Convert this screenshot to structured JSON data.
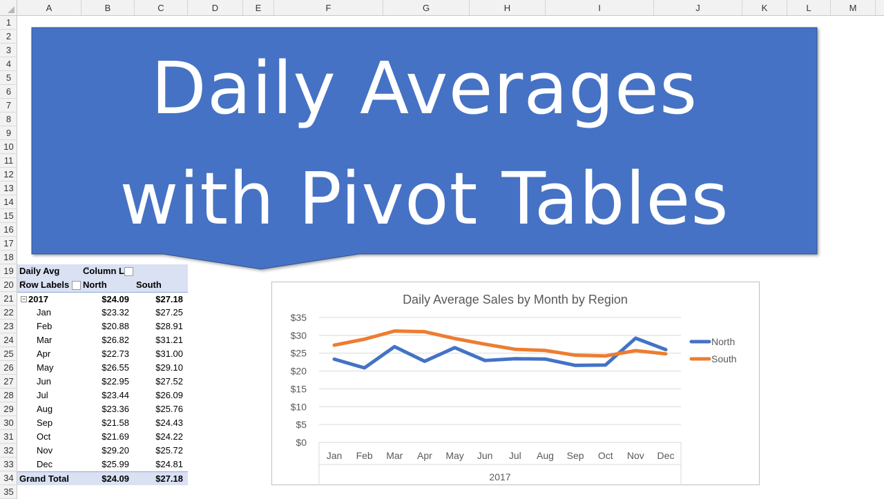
{
  "sheet": {
    "columns": [
      "A",
      "B",
      "C",
      "D",
      "E",
      "F",
      "G",
      "H",
      "I",
      "J",
      "K",
      "L",
      "M"
    ],
    "rows": [
      "1",
      "2",
      "3",
      "4",
      "5",
      "6",
      "7",
      "8",
      "9",
      "10",
      "11",
      "12",
      "13",
      "14",
      "15",
      "16",
      "17",
      "18",
      "19",
      "20",
      "21",
      "22",
      "23",
      "24",
      "25",
      "26",
      "27",
      "28",
      "29",
      "30",
      "31",
      "32",
      "33",
      "34",
      "35"
    ]
  },
  "banner": {
    "line1": "Daily Averages",
    "line2": "with Pivot Tables",
    "color": "#4472c4"
  },
  "pivot": {
    "value_label": "Daily Avg",
    "column_labels": "Column L",
    "row_labels": "Row Labels",
    "col_north": "North",
    "col_south": "South",
    "year": {
      "label": "2017",
      "north": "$24.09",
      "south": "$27.18"
    },
    "months": [
      {
        "label": "Jan",
        "north": "$23.32",
        "south": "$27.25"
      },
      {
        "label": "Feb",
        "north": "$20.88",
        "south": "$28.91"
      },
      {
        "label": "Mar",
        "north": "$26.82",
        "south": "$31.21"
      },
      {
        "label": "Apr",
        "north": "$22.73",
        "south": "$31.00"
      },
      {
        "label": "May",
        "north": "$26.55",
        "south": "$29.10"
      },
      {
        "label": "Jun",
        "north": "$22.95",
        "south": "$27.52"
      },
      {
        "label": "Jul",
        "north": "$23.44",
        "south": "$26.09"
      },
      {
        "label": "Aug",
        "north": "$23.36",
        "south": "$25.76"
      },
      {
        "label": "Sep",
        "north": "$21.58",
        "south": "$24.43"
      },
      {
        "label": "Oct",
        "north": "$21.69",
        "south": "$24.22"
      },
      {
        "label": "Nov",
        "north": "$29.20",
        "south": "$25.72"
      },
      {
        "label": "Dec",
        "north": "$25.99",
        "south": "$24.81"
      }
    ],
    "grand_total": {
      "label": "Grand Total",
      "north": "$24.09",
      "south": "$27.18"
    }
  },
  "chart_data": {
    "type": "line",
    "title": "Daily Average Sales by Month by Region",
    "categories": [
      "Jan",
      "Feb",
      "Mar",
      "Apr",
      "May",
      "Jun",
      "Jul",
      "Aug",
      "Sep",
      "Oct",
      "Nov",
      "Dec"
    ],
    "category_group": "2017",
    "series": [
      {
        "name": "North",
        "color": "#4472c4",
        "values": [
          23.32,
          20.88,
          26.82,
          22.73,
          26.55,
          22.95,
          23.44,
          23.36,
          21.58,
          21.69,
          29.2,
          25.99
        ]
      },
      {
        "name": "South",
        "color": "#ed7d31",
        "values": [
          27.25,
          28.91,
          31.21,
          31.0,
          29.1,
          27.52,
          26.09,
          25.76,
          24.43,
          24.22,
          25.72,
          24.81
        ]
      }
    ],
    "yticks": [
      "$0",
      "$5",
      "$10",
      "$15",
      "$20",
      "$25",
      "$30",
      "$35"
    ],
    "ylim": [
      0,
      35
    ],
    "grid": true,
    "legend": "right"
  }
}
